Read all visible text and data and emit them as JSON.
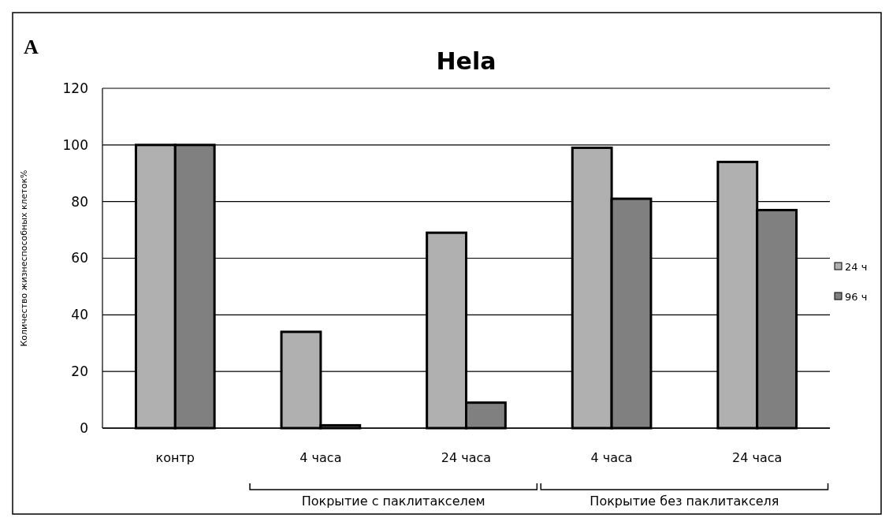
{
  "chart_data": {
    "type": "bar",
    "title": "Hela",
    "ylabel": "Количество жизнеспособных клеток%",
    "categories": [
      "контр",
      "4 часа",
      "24 часа",
      "4 часа",
      "24 часа"
    ],
    "series": [
      {
        "name": "24 ч",
        "color": "#b0b0b0",
        "values": [
          100,
          34,
          69,
          99,
          94
        ]
      },
      {
        "name": "96 ч",
        "color": "#808080",
        "values": [
          100,
          1,
          9,
          81,
          77
        ]
      }
    ],
    "ylim": [
      0,
      120
    ],
    "yticks": [
      0,
      20,
      40,
      60,
      80,
      100,
      120
    ],
    "grid": "y",
    "legend": "right",
    "annotations": [
      "A",
      "Покрытие с паклитакселем",
      "Покрытие  без паклитакселя"
    ]
  }
}
